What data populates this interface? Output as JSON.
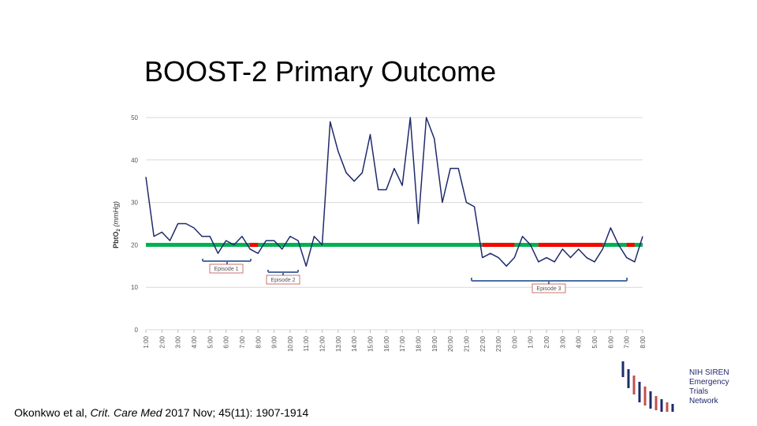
{
  "title": "BOOST-2 Primary Outcome",
  "citation": {
    "authors": "Okonkwo et al, ",
    "journal": "Crit. Care Med",
    "rest": " 2017 Nov; 45(11): 1907-1914"
  },
  "logo": {
    "lines": [
      "NIH SIREN",
      "Emergency",
      "Trials",
      "Network"
    ]
  },
  "chart_data": {
    "type": "line",
    "y_label": {
      "main": "PbtO",
      "sub": "2",
      "unit": "(mmHg)"
    },
    "x": [
      1,
      1.5,
      2,
      2.5,
      3,
      3.5,
      4,
      4.5,
      5,
      5.5,
      6,
      6.5,
      7,
      7.5,
      8,
      8.5,
      9,
      9.5,
      10,
      10.5,
      11,
      11.5,
      12,
      12.5,
      13,
      13.5,
      14,
      14.5,
      15,
      15.5,
      16,
      16.5,
      17,
      17.5,
      18,
      18.5,
      19,
      19.5,
      20,
      20.5,
      21,
      21.5,
      22,
      22.5,
      23,
      23.5,
      24,
      24.5,
      25,
      25.5,
      26,
      26.5,
      27,
      27.5,
      28,
      28.5,
      29,
      29.5,
      30,
      30.5,
      31,
      31.5,
      32
    ],
    "series": [
      {
        "name": "PbtO2",
        "color": "#1f2a6b",
        "values": [
          36,
          22,
          23,
          21,
          25,
          25,
          24,
          22,
          22,
          18,
          21,
          20,
          22,
          19,
          18,
          21,
          21,
          19,
          22,
          21,
          15,
          22,
          20,
          49,
          42,
          37,
          35,
          37,
          46,
          33,
          33,
          38,
          34,
          50,
          25,
          50,
          45,
          30,
          38,
          38,
          30,
          29,
          17,
          18,
          17,
          15,
          17,
          22,
          20,
          16,
          17,
          16,
          19,
          17,
          19,
          17,
          16,
          19,
          24,
          20,
          17,
          16,
          22
        ]
      }
    ],
    "threshold": {
      "value": 20,
      "color": "#00b050",
      "below_color": "#ff0000"
    },
    "annotations": [
      "Episode 1",
      "Episode 2",
      "Episode 3"
    ],
    "xlim": [
      1,
      32
    ],
    "xticks": [
      {
        "value": 1,
        "label": "1:00"
      },
      {
        "value": 2,
        "label": "2:00"
      },
      {
        "value": 3,
        "label": "3:00"
      },
      {
        "value": 4,
        "label": "4:00"
      },
      {
        "value": 5,
        "label": "5:00"
      },
      {
        "value": 6,
        "label": "6:00"
      },
      {
        "value": 7,
        "label": "7:00"
      },
      {
        "value": 8,
        "label": "8:00"
      },
      {
        "value": 9,
        "label": "9:00"
      },
      {
        "value": 10,
        "label": "10:00"
      },
      {
        "value": 11,
        "label": "11:00"
      },
      {
        "value": 12,
        "label": "12:00"
      },
      {
        "value": 13,
        "label": "13:00"
      },
      {
        "value": 14,
        "label": "14:00"
      },
      {
        "value": 15,
        "label": "15:00"
      },
      {
        "value": 16,
        "label": "16:00"
      },
      {
        "value": 17,
        "label": "17:00"
      },
      {
        "value": 18,
        "label": "18:00"
      },
      {
        "value": 19,
        "label": "19:00"
      },
      {
        "value": 20,
        "label": "20:00"
      },
      {
        "value": 21,
        "label": "21:00"
      },
      {
        "value": 22,
        "label": "22:00"
      },
      {
        "value": 23,
        "label": "23:00"
      },
      {
        "value": 24,
        "label": "0:00"
      },
      {
        "value": 25,
        "label": "1:00"
      },
      {
        "value": 26,
        "label": "2:00"
      },
      {
        "value": 27,
        "label": "3:00"
      },
      {
        "value": 28,
        "label": "4:00"
      },
      {
        "value": 29,
        "label": "5:00"
      },
      {
        "value": 30,
        "label": "6:00"
      },
      {
        "value": 31,
        "label": "7:00"
      },
      {
        "value": 32,
        "label": "8:00"
      }
    ],
    "ylim": [
      0,
      50
    ],
    "yticks": [
      0,
      10,
      20,
      30,
      40,
      50
    ],
    "grid": true
  }
}
